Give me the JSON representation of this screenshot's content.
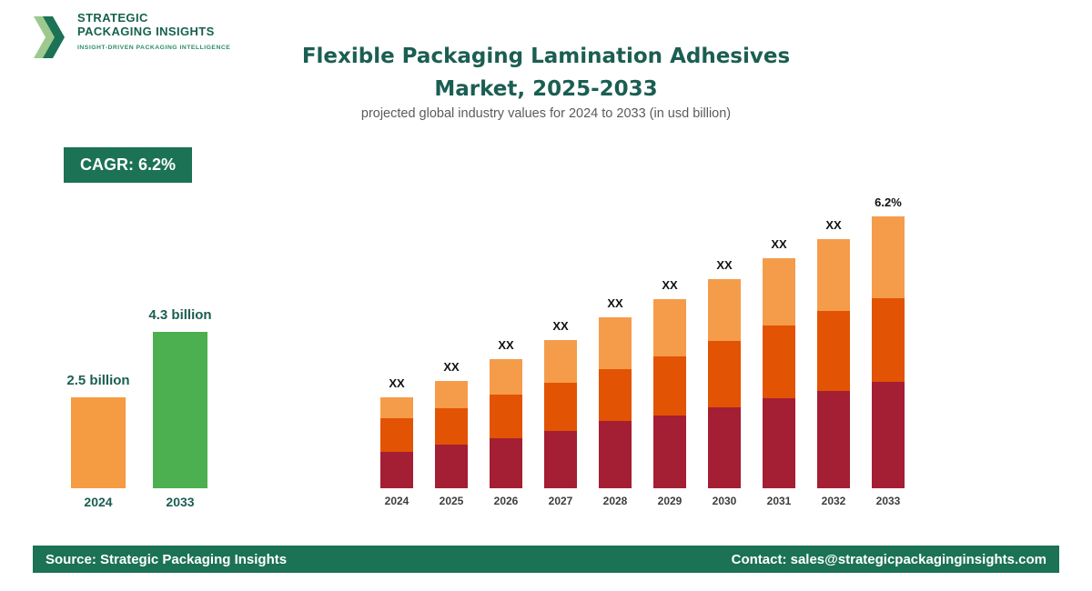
{
  "brand": {
    "name_line1": "STRATEGIC",
    "name_line2": "PACKAGING INSIGHTS",
    "tagline": "INSIGHT-DRIVEN PACKAGING INTELLIGENCE"
  },
  "header": {
    "title_line1": "Flexible Packaging Lamination Adhesives",
    "title_line2": "Market, 2025-2033",
    "subtitle": "projected global industry values for 2024 to 2033 (in usd billion)"
  },
  "cagr_badge": "CAGR: 6.2%",
  "chart_data": [
    {
      "type": "bar",
      "name": "main-stacked-chart",
      "stacked": true,
      "categories": [
        "2024",
        "2025",
        "2026",
        "2027",
        "2028",
        "2029",
        "2030",
        "2031",
        "2032",
        "2033"
      ],
      "bar_value_labels": [
        "XX",
        "XX",
        "XX",
        "XX",
        "XX",
        "XX",
        "XX",
        "XX",
        "XX",
        "6.2%"
      ],
      "series": [
        {
          "name": "bottom-segment",
          "color": "#A41E34",
          "values": [
            40,
            48,
            55,
            63,
            74,
            80,
            89,
            99,
            107,
            117
          ]
        },
        {
          "name": "middle-segment",
          "color": "#E25303",
          "values": [
            37,
            40,
            48,
            53,
            57,
            65,
            73,
            80,
            88,
            92
          ]
        },
        {
          "name": "top-segment",
          "color": "#F59C4B",
          "values": [
            23,
            30,
            39,
            47,
            57,
            63,
            68,
            74,
            79,
            90
          ]
        }
      ],
      "cagr": "6.2%",
      "legend": "none",
      "note": "numeric segment values are hidden in source (shown as XX); series values are relative estimates of bar heights"
    },
    {
      "type": "bar",
      "name": "summary-comparison-chart",
      "categories": [
        "2024",
        "2033"
      ],
      "values": [
        2.5,
        4.3
      ],
      "value_labels": [
        "2.5 billion",
        "4.3 billion"
      ],
      "colors": [
        "#F59B42",
        "#4CAF50"
      ],
      "legend": "none"
    }
  ],
  "footer": {
    "source": "Source: Strategic Packaging Insights",
    "contact": "Contact: sales@strategicpackaginginsights.com"
  }
}
